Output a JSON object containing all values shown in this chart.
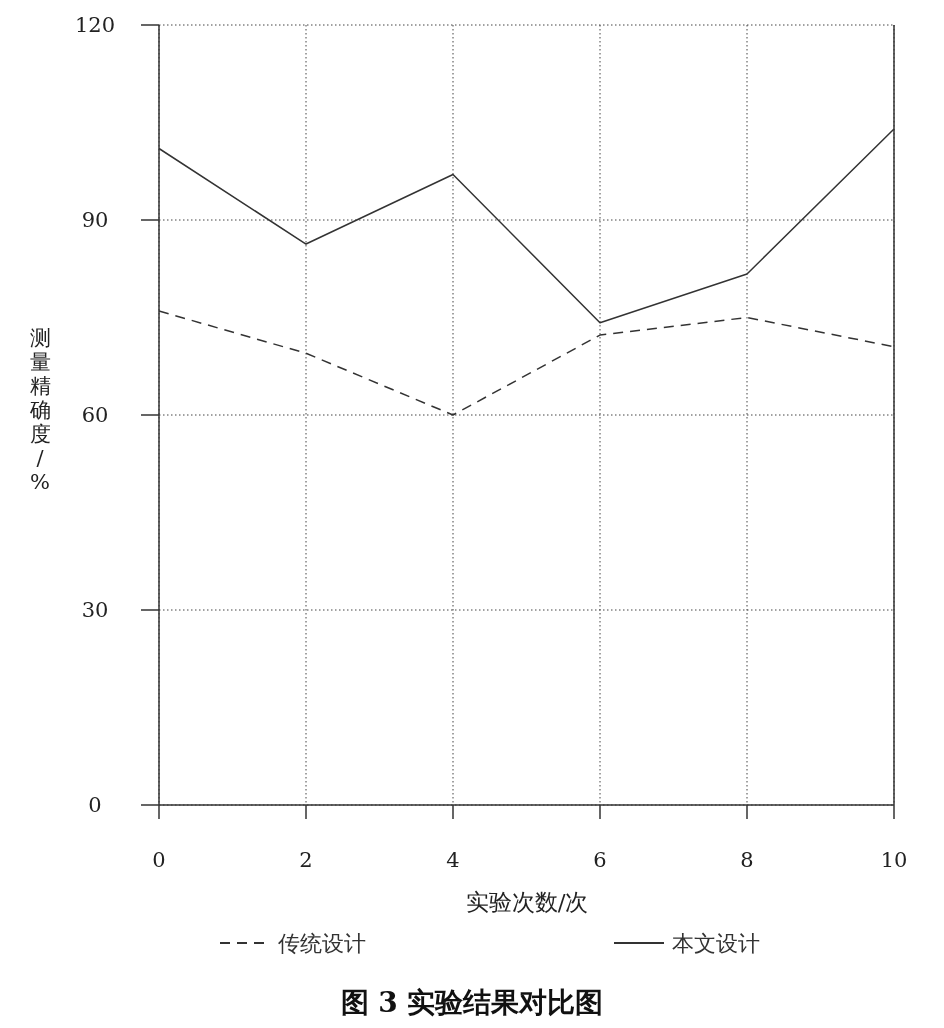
{
  "chart_data": {
    "type": "line",
    "title": "图 3  实验结果对比图",
    "xlabel": "实验次数/次",
    "ylabel": "测量精确度/%",
    "x": [
      0,
      2,
      4,
      6,
      8,
      10
    ],
    "xlim": [
      0,
      10
    ],
    "xticks": [
      0,
      2,
      4,
      6,
      8,
      10
    ],
    "ylim": [
      0,
      120
    ],
    "yticks": [
      0,
      30,
      60,
      90,
      120
    ],
    "grid": true,
    "legend": "bottom",
    "marker": "none",
    "series": [
      {
        "name": "传统设计",
        "color": "#333333",
        "line_style": "dashed",
        "values": [
          76,
          69.5,
          60,
          72.3,
          75,
          70.5
        ]
      },
      {
        "name": "本文设计",
        "color": "#333333",
        "line_style": "solid",
        "values": [
          101,
          86.3,
          97,
          74.2,
          81.7,
          104
        ]
      }
    ]
  }
}
